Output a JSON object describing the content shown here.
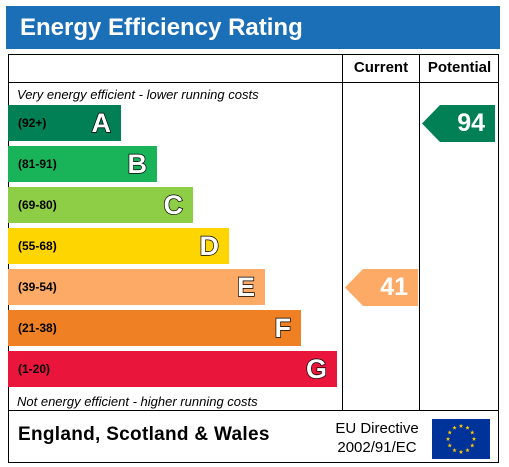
{
  "title": "Energy Efficiency Rating",
  "columns": {
    "current": "Current",
    "potential": "Potential"
  },
  "notes": {
    "top": "Very energy efficient - lower running costs",
    "bottom": "Not energy efficient - higher running costs"
  },
  "chart_data": {
    "type": "bar",
    "bands": [
      {
        "letter": "A",
        "range": "(92+)",
        "color": "#008054"
      },
      {
        "letter": "B",
        "range": "(81-91)",
        "color": "#19b459"
      },
      {
        "letter": "C",
        "range": "(69-80)",
        "color": "#8dce46"
      },
      {
        "letter": "D",
        "range": "(55-68)",
        "color": "#ffd500"
      },
      {
        "letter": "E",
        "range": "(39-54)",
        "color": "#fcaa65"
      },
      {
        "letter": "F",
        "range": "(21-38)",
        "color": "#ef8023"
      },
      {
        "letter": "G",
        "range": "(1-20)",
        "color": "#e9153b"
      }
    ],
    "current": {
      "value": 41,
      "band": "E",
      "color": "#fcaa65"
    },
    "potential": {
      "value": 94,
      "band": "A",
      "color": "#008054"
    }
  },
  "footer": {
    "region": "England, Scotland & Wales",
    "directive_line1": "EU Directive",
    "directive_line2": "2002/91/EC"
  }
}
